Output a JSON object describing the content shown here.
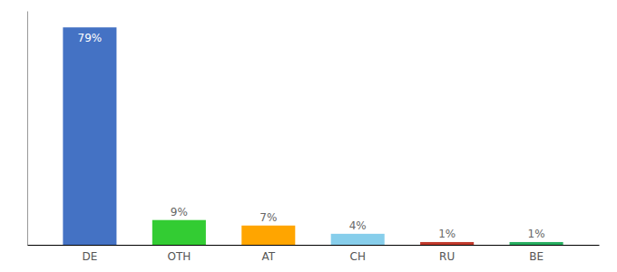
{
  "chart_data": {
    "type": "bar",
    "categories": [
      "DE",
      "OTH",
      "AT",
      "CH",
      "RU",
      "BE"
    ],
    "values": [
      79,
      9,
      7,
      4,
      1,
      1
    ],
    "value_labels": [
      "79%",
      "9%",
      "7%",
      "4%",
      "1%",
      "1%"
    ],
    "colors": [
      "#4472C4",
      "#33CC33",
      "#FFA500",
      "#87CEEB",
      "#C0392B",
      "#27AE60"
    ],
    "ylim": [
      0,
      85
    ],
    "grid": false,
    "data_labels": true,
    "tick_labels": "x"
  }
}
